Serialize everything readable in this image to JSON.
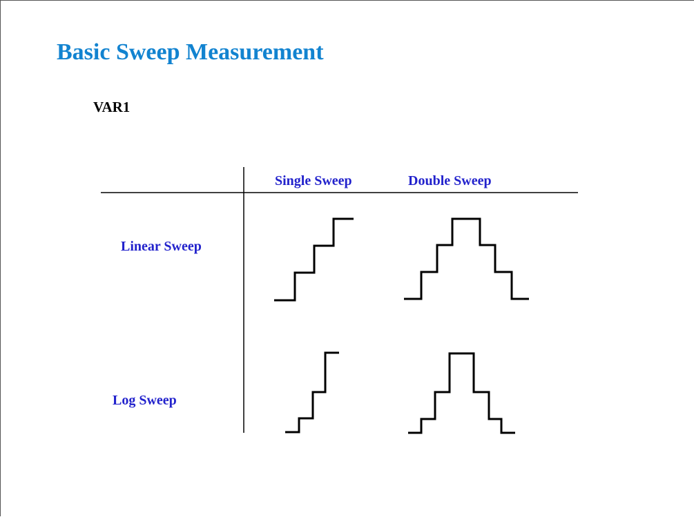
{
  "title": "Basic Sweep Measurement",
  "subtitle": "VAR1",
  "table": {
    "columns": [
      "Single Sweep",
      "Double Sweep"
    ],
    "rows": [
      "Linear Sweep",
      "Log Sweep"
    ]
  }
}
